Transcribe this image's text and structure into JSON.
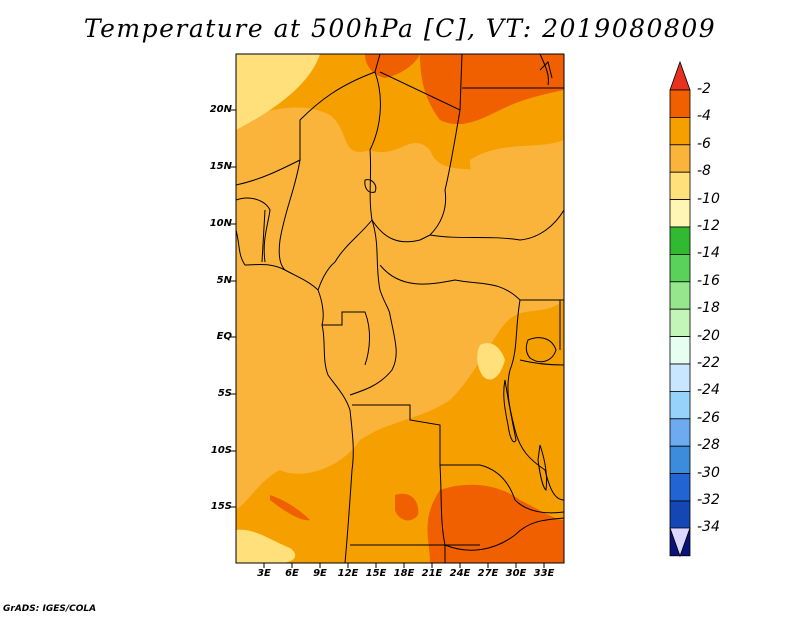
{
  "title": "Temperature at 500hPa [C], VT: 2019080809",
  "credit": "GrADS: IGES/COLA",
  "map": {
    "lat_labels": [
      "20N",
      "15N",
      "10N",
      "5N",
      "EQ",
      "5S",
      "10S",
      "15S"
    ],
    "lon_labels": [
      "3E",
      "6E",
      "9E",
      "12E",
      "15E",
      "18E",
      "21E",
      "24E",
      "27E",
      "30E",
      "33E"
    ],
    "field_colors": {
      "warmest": "#f06000",
      "warm": "#f5a000",
      "mid": "#fab43c",
      "cool": "#ffe07a",
      "coolest": "#fff2b0"
    }
  },
  "colorbar": {
    "labels": [
      "-2",
      "-4",
      "-6",
      "-8",
      "-10",
      "-12",
      "-14",
      "-16",
      "-18",
      "-20",
      "-22",
      "-24",
      "-26",
      "-28",
      "-30",
      "-32",
      "-34"
    ],
    "top_color": "#e6321e",
    "bottom_color": "#dcd7ff",
    "colors": [
      "#f06000",
      "#f5a000",
      "#fab43c",
      "#ffe07a",
      "#fff5b4",
      "#32b932",
      "#5ad25a",
      "#96e68c",
      "#c3f5b9",
      "#e6fff0",
      "#c8e6ff",
      "#96d2fa",
      "#6eaaf0",
      "#3c8cdc",
      "#2264d2",
      "#1446b4",
      "#0a1478"
    ]
  }
}
